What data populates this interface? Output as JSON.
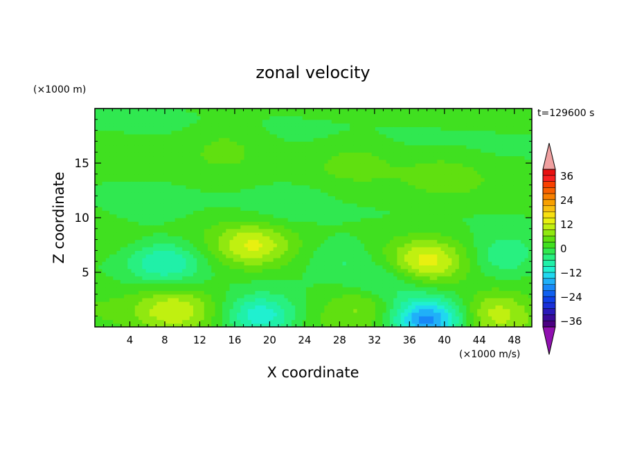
{
  "chart_data": {
    "type": "heatmap",
    "title": "zonal velocity",
    "xlabel": "X coordinate",
    "ylabel": "Z coordinate",
    "x_unit": "(×1000 m/s)",
    "y_unit": "(×1000 m)",
    "time_label": "t=129600 s",
    "xlim": [
      0,
      50
    ],
    "ylim": [
      0,
      20
    ],
    "x_ticks": [
      4,
      8,
      12,
      16,
      20,
      24,
      28,
      32,
      36,
      40,
      44,
      48
    ],
    "y_ticks": [
      5,
      10,
      15
    ],
    "colorbar": {
      "levels": [
        -42,
        -39,
        -36,
        -33,
        -30,
        -27,
        -24,
        -21,
        -18,
        -15,
        -12,
        -9,
        -6,
        -3,
        0,
        3,
        6,
        9,
        12,
        15,
        18,
        21,
        24,
        27,
        30,
        33,
        36,
        39,
        42
      ],
      "tick_labels": [
        "36",
        "24",
        "12",
        "0",
        "−12",
        "−24",
        "−36"
      ],
      "tick_values": [
        36,
        24,
        12,
        0,
        -12,
        -24,
        -36
      ],
      "colors": [
        "#4b0082",
        "#3a0a9a",
        "#2a1ab8",
        "#1a30d8",
        "#1040e8",
        "#1060f0",
        "#1888f8",
        "#20b0f8",
        "#20d8f0",
        "#20f0d0",
        "#20f0a8",
        "#28f080",
        "#30e850",
        "#40e020",
        "#60e010",
        "#90e810",
        "#c0f010",
        "#e8f010",
        "#f8e010",
        "#f8c010",
        "#f8a000",
        "#f88000",
        "#f86000",
        "#f84000",
        "#f82020",
        "#e81010"
      ],
      "over_color": "#f0a0a0",
      "under_color": "#9010b0"
    },
    "features": [
      {
        "x": 18,
        "z": 7.5,
        "u": 10
      },
      {
        "x": 38,
        "z": 6.0,
        "u": 11
      },
      {
        "x": 9,
        "z": 1.6,
        "u": 9
      },
      {
        "x": 46,
        "z": 1.4,
        "u": 9
      },
      {
        "x": 31,
        "z": 2.2,
        "u": 6
      },
      {
        "x": 8,
        "z": 6.0,
        "u": -10
      },
      {
        "x": 47,
        "z": 6.5,
        "u": -8
      },
      {
        "x": 19,
        "z": 1.0,
        "u": -14
      },
      {
        "x": 38,
        "z": 0.6,
        "u": -22
      },
      {
        "x": 28,
        "z": 6.5,
        "u": -5
      },
      {
        "x": 33,
        "z": 4.0,
        "u": -6
      },
      {
        "x": 22,
        "z": 11.5,
        "u": -3
      },
      {
        "x": 6,
        "z": 11.0,
        "u": -3
      },
      {
        "x": 30,
        "z": 15.5,
        "u": 3
      },
      {
        "x": 15,
        "z": 17.0,
        "u": 3
      },
      {
        "x": 40,
        "z": 14.0,
        "u": 3
      }
    ]
  }
}
